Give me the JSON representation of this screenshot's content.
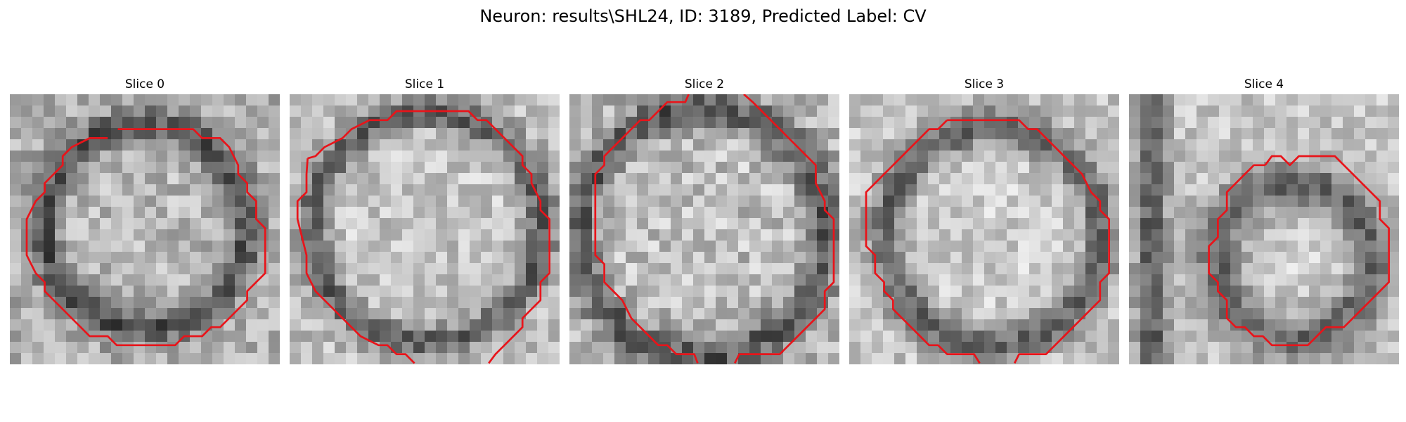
{
  "figure": {
    "title": "Neuron: results\\SHL24, ID: 3189, Predicted Label: CV"
  },
  "colors": {
    "contour": "#e8141a",
    "background": "#ffffff"
  },
  "panels": [
    {
      "title": "Slice 0",
      "image": {
        "grid": 24,
        "shape": "closed-ring",
        "center": [
          12.0,
          11.8
        ],
        "radius": 9.0,
        "ring_width": 1.5,
        "seed": 11,
        "base": 175,
        "noise": 40
      },
      "contour": [
        [
          9.6,
          3.1
        ],
        [
          16.3,
          3.1
        ],
        [
          17.1,
          3.9
        ],
        [
          18.7,
          3.9
        ],
        [
          19.5,
          4.7
        ],
        [
          20.3,
          6.3
        ],
        [
          20.3,
          7.1
        ],
        [
          21.1,
          7.9
        ],
        [
          21.1,
          8.7
        ],
        [
          21.9,
          9.5
        ],
        [
          21.9,
          11.1
        ],
        [
          22.7,
          11.9
        ],
        [
          22.7,
          15.9
        ],
        [
          21.9,
          16.7
        ],
        [
          21.1,
          17.5
        ],
        [
          21.1,
          18.3
        ],
        [
          20.3,
          19.1
        ],
        [
          19.5,
          19.9
        ],
        [
          18.7,
          20.7
        ],
        [
          17.9,
          20.7
        ],
        [
          17.1,
          21.5
        ],
        [
          15.5,
          21.5
        ],
        [
          14.7,
          22.3
        ],
        [
          13.1,
          22.3
        ],
        [
          9.5,
          22.3
        ],
        [
          8.7,
          21.5
        ],
        [
          7.1,
          21.5
        ],
        [
          6.3,
          20.7
        ],
        [
          5.5,
          19.9
        ],
        [
          4.7,
          19.1
        ],
        [
          3.9,
          18.3
        ],
        [
          3.1,
          17.5
        ],
        [
          3.1,
          16.7
        ],
        [
          2.3,
          15.9
        ],
        [
          1.5,
          14.3
        ],
        [
          1.5,
          11.1
        ],
        [
          2.3,
          9.5
        ],
        [
          3.1,
          8.7
        ],
        [
          3.1,
          7.9
        ],
        [
          3.9,
          7.1
        ],
        [
          4.7,
          6.3
        ],
        [
          4.7,
          5.5
        ],
        [
          5.5,
          4.7
        ],
        [
          7.1,
          3.9
        ],
        [
          8.7,
          3.9
        ]
      ]
    },
    {
      "title": "Slice 1",
      "image": {
        "grid": 24,
        "shape": "closed-ring",
        "center": [
          12.2,
          11.8
        ],
        "radius": 10.2,
        "ring_width": 1.4,
        "seed": 23,
        "base": 190,
        "noise": 38
      },
      "contour": [
        [
          7.9,
          2.3
        ],
        [
          8.7,
          2.3
        ],
        [
          9.5,
          1.5
        ],
        [
          11.1,
          1.5
        ],
        [
          11.9,
          1.5
        ],
        [
          15.1,
          1.5
        ],
        [
          15.9,
          1.5
        ],
        [
          16.7,
          2.3
        ],
        [
          17.5,
          2.3
        ],
        [
          18.3,
          3.1
        ],
        [
          19.1,
          3.9
        ],
        [
          19.9,
          4.7
        ],
        [
          20.7,
          5.5
        ],
        [
          20.7,
          6.3
        ],
        [
          21.5,
          7.1
        ],
        [
          21.5,
          7.9
        ],
        [
          22.3,
          9.5
        ],
        [
          22.3,
          10.3
        ],
        [
          23.1,
          11.1
        ],
        [
          23.1,
          15.9
        ],
        [
          22.3,
          16.7
        ],
        [
          22.3,
          18.3
        ],
        [
          21.5,
          19.1
        ],
        [
          20.7,
          19.9
        ],
        [
          20.7,
          20.7
        ],
        [
          19.9,
          21.5
        ],
        [
          19.1,
          22.3
        ],
        [
          18.3,
          23.1
        ],
        [
          17.7,
          23.9
        ]
      ],
      "contour2": [
        [
          1.6,
          5.7
        ],
        [
          2.3,
          5.5
        ],
        [
          3.1,
          4.7
        ],
        [
          4.7,
          3.9
        ],
        [
          5.5,
          3.1
        ],
        [
          7.1,
          2.3
        ],
        [
          7.9,
          2.3
        ]
      ],
      "contour3": [
        [
          1.6,
          5.7
        ],
        [
          1.5,
          7.1
        ],
        [
          1.5,
          8.7
        ],
        [
          0.7,
          9.5
        ],
        [
          0.7,
          11.1
        ],
        [
          1.5,
          14.3
        ],
        [
          1.5,
          15.9
        ],
        [
          2.3,
          17.5
        ],
        [
          3.1,
          18.3
        ],
        [
          3.9,
          19.1
        ],
        [
          4.7,
          19.9
        ],
        [
          5.5,
          20.7
        ],
        [
          6.3,
          21.5
        ],
        [
          7.9,
          22.3
        ],
        [
          8.7,
          22.3
        ],
        [
          9.5,
          23.1
        ],
        [
          10.3,
          23.1
        ],
        [
          11.1,
          23.9
        ]
      ]
    },
    {
      "title": "Slice 2",
      "image": {
        "grid": 24,
        "shape": "closed-ring",
        "center": [
          11.8,
          12.3
        ],
        "radius": 11.0,
        "ring_width": 1.6,
        "seed": 37,
        "base": 182,
        "noise": 44
      },
      "contour": [
        [
          10.6,
          0.0
        ],
        [
          10.3,
          0.7
        ],
        [
          8.7,
          0.7
        ],
        [
          7.9,
          1.5
        ],
        [
          7.1,
          2.3
        ],
        [
          6.3,
          2.3
        ],
        [
          5.5,
          3.1
        ],
        [
          4.7,
          3.9
        ],
        [
          3.9,
          4.7
        ],
        [
          3.1,
          5.5
        ],
        [
          3.1,
          6.3
        ],
        [
          2.3,
          7.1
        ],
        [
          2.3,
          14.3
        ],
        [
          3.1,
          15.1
        ],
        [
          3.1,
          16.7
        ],
        [
          3.9,
          17.5
        ],
        [
          4.7,
          18.3
        ],
        [
          5.5,
          19.9
        ],
        [
          6.3,
          20.7
        ],
        [
          7.1,
          21.5
        ],
        [
          7.9,
          22.3
        ],
        [
          8.7,
          22.3
        ],
        [
          9.5,
          23.1
        ],
        [
          11.1,
          23.1
        ],
        [
          11.4,
          23.9
        ]
      ],
      "contour2": [
        [
          15.5,
          0.0
        ],
        [
          16.3,
          0.7
        ],
        [
          17.1,
          1.5
        ],
        [
          17.9,
          2.3
        ],
        [
          18.7,
          3.1
        ],
        [
          19.5,
          3.9
        ],
        [
          20.3,
          4.7
        ],
        [
          21.1,
          5.5
        ],
        [
          21.9,
          6.3
        ],
        [
          21.9,
          7.9
        ],
        [
          22.7,
          9.5
        ],
        [
          22.7,
          10.3
        ],
        [
          23.5,
          11.1
        ],
        [
          23.5,
          16.7
        ],
        [
          22.7,
          17.5
        ],
        [
          22.7,
          19.1
        ],
        [
          21.9,
          19.9
        ],
        [
          21.1,
          20.7
        ],
        [
          20.3,
          21.5
        ],
        [
          19.5,
          22.3
        ],
        [
          18.7,
          23.1
        ],
        [
          15.1,
          23.1
        ],
        [
          14.7,
          23.9
        ]
      ]
    },
    {
      "title": "Slice 3",
      "image": {
        "grid": 24,
        "shape": "closed-ring",
        "center": [
          12.8,
          12.6
        ],
        "radius": 9.6,
        "ring_width": 1.7,
        "seed": 53,
        "base": 196,
        "noise": 36
      },
      "contour": [
        [
          8.7,
          2.3
        ],
        [
          15.1,
          2.3
        ],
        [
          15.9,
          3.1
        ],
        [
          16.7,
          3.1
        ],
        [
          17.5,
          3.9
        ],
        [
          18.3,
          4.7
        ],
        [
          19.1,
          5.5
        ],
        [
          19.9,
          6.3
        ],
        [
          20.7,
          7.1
        ],
        [
          21.5,
          8.7
        ],
        [
          22.3,
          9.5
        ],
        [
          22.3,
          10.3
        ],
        [
          23.1,
          11.1
        ],
        [
          23.1,
          15.9
        ],
        [
          22.3,
          16.7
        ],
        [
          22.3,
          18.3
        ],
        [
          21.5,
          19.1
        ],
        [
          20.7,
          19.9
        ],
        [
          19.9,
          20.7
        ],
        [
          19.1,
          21.5
        ],
        [
          18.3,
          22.3
        ],
        [
          17.5,
          23.1
        ],
        [
          15.1,
          23.1
        ],
        [
          14.7,
          23.9
        ]
      ],
      "contour2": [
        [
          11.6,
          23.9
        ],
        [
          11.1,
          23.1
        ],
        [
          9.5,
          23.1
        ],
        [
          8.7,
          23.1
        ],
        [
          7.9,
          22.3
        ],
        [
          7.1,
          22.3
        ],
        [
          6.3,
          21.5
        ],
        [
          5.5,
          20.7
        ],
        [
          4.7,
          19.9
        ],
        [
          3.9,
          19.1
        ],
        [
          3.9,
          18.3
        ],
        [
          3.1,
          17.5
        ],
        [
          3.1,
          16.7
        ],
        [
          2.3,
          15.9
        ],
        [
          2.3,
          14.3
        ],
        [
          1.5,
          13.5
        ],
        [
          1.5,
          8.7
        ],
        [
          3.1,
          7.1
        ],
        [
          3.9,
          6.3
        ],
        [
          4.7,
          5.5
        ],
        [
          5.5,
          4.7
        ],
        [
          6.3,
          3.9
        ],
        [
          7.1,
          3.1
        ],
        [
          7.9,
          3.1
        ],
        [
          8.7,
          2.3
        ]
      ]
    },
    {
      "title": "Slice 4",
      "image": {
        "grid": 24,
        "shape": "closed-ring",
        "center": [
          14.8,
          14.8
        ],
        "radius": 6.8,
        "ring_width": 2.2,
        "seed": 71,
        "base": 198,
        "noise": 34,
        "vertical_band": 1.4
      },
      "contour": [
        [
          12.1,
          6.3
        ],
        [
          12.7,
          5.5
        ],
        [
          13.5,
          5.5
        ],
        [
          14.3,
          6.3
        ],
        [
          14.3,
          6.3
        ],
        [
          15.1,
          5.5
        ],
        [
          15.9,
          5.5
        ],
        [
          16.7,
          5.5
        ],
        [
          18.3,
          5.5
        ],
        [
          19.1,
          6.3
        ],
        [
          19.9,
          7.1
        ],
        [
          20.7,
          7.9
        ],
        [
          21.5,
          8.7
        ],
        [
          22.3,
          9.5
        ],
        [
          22.3,
          11.1
        ],
        [
          23.1,
          11.9
        ],
        [
          23.1,
          16.7
        ],
        [
          22.3,
          17.5
        ],
        [
          21.5,
          18.3
        ],
        [
          20.7,
          19.1
        ],
        [
          19.9,
          19.9
        ],
        [
          19.1,
          20.7
        ],
        [
          17.5,
          20.7
        ],
        [
          16.7,
          21.5
        ],
        [
          15.9,
          22.3
        ],
        [
          12.7,
          22.3
        ],
        [
          11.9,
          21.5
        ],
        [
          11.1,
          21.5
        ],
        [
          10.3,
          20.7
        ],
        [
          9.5,
          20.7
        ],
        [
          8.7,
          19.9
        ],
        [
          8.7,
          18.3
        ],
        [
          7.9,
          17.5
        ],
        [
          7.9,
          16.7
        ],
        [
          7.1,
          15.9
        ],
        [
          7.1,
          13.5
        ],
        [
          7.9,
          12.7
        ],
        [
          7.9,
          11.1
        ],
        [
          8.7,
          10.3
        ],
        [
          8.7,
          8.7
        ],
        [
          9.5,
          7.9
        ],
        [
          10.3,
          7.1
        ],
        [
          11.1,
          6.3
        ],
        [
          12.1,
          6.3
        ]
      ]
    }
  ]
}
